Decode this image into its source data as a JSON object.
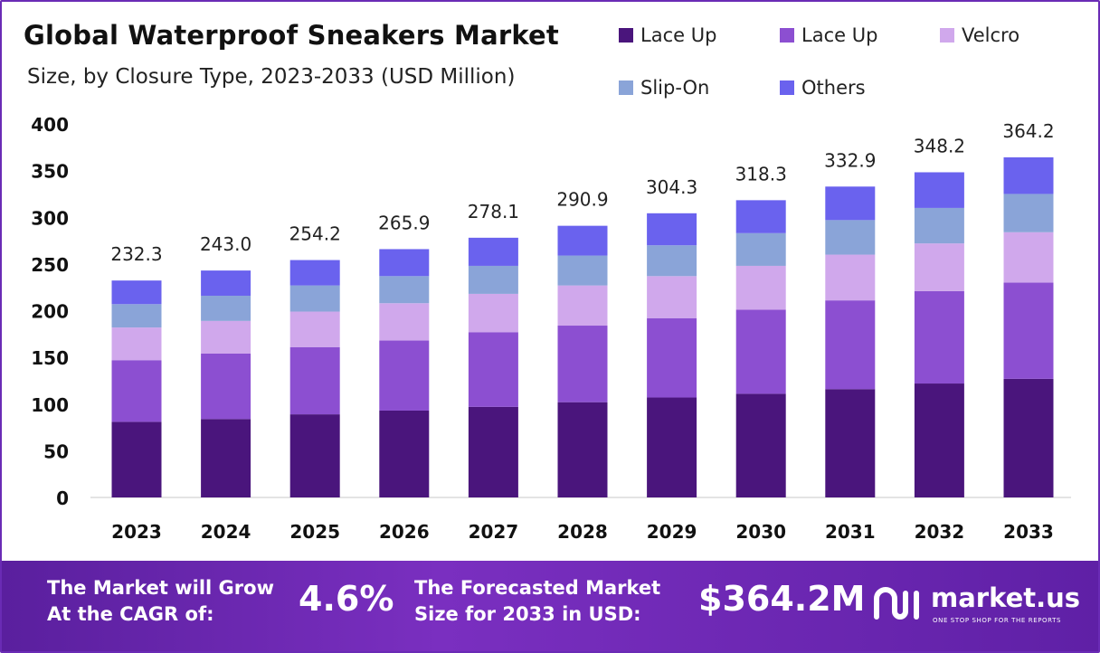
{
  "chart_data": {
    "type": "bar",
    "stacked": true,
    "title": "Global Waterproof Sneakers Market",
    "subtitle": "Size, by Closure Type, 2023-2033 (USD Million)",
    "xlabel": "",
    "ylabel": "",
    "ylim": [
      0,
      400
    ],
    "yticks": [
      0,
      50,
      100,
      150,
      200,
      250,
      300,
      350,
      400
    ],
    "grid": false,
    "legend_position": "top-right",
    "categories": [
      "2023",
      "2024",
      "2025",
      "2026",
      "2027",
      "2028",
      "2029",
      "2030",
      "2031",
      "2032",
      "2033"
    ],
    "totals": [
      "232.3",
      "243.0",
      "254.2",
      "265.9",
      "278.1",
      "290.9",
      "304.3",
      "318.3",
      "332.9",
      "348.2",
      "364.2"
    ],
    "series": [
      {
        "name": "Lace Up",
        "color": "#4a157c",
        "values": [
          81,
          84,
          89,
          93,
          97,
          102,
          107,
          111,
          116,
          122,
          127
        ]
      },
      {
        "name": "Lace Up",
        "color": "#8c4fd1",
        "values": [
          66,
          70,
          72,
          75,
          80,
          82,
          85,
          90,
          95,
          99,
          103
        ]
      },
      {
        "name": "Velcro",
        "color": "#d0a8ec",
        "values": [
          35,
          35,
          38,
          40,
          41,
          43,
          45,
          47,
          49,
          51,
          54
        ]
      },
      {
        "name": "Slip-On",
        "color": "#8aa4d8",
        "values": [
          25,
          27,
          28,
          29,
          30,
          32,
          33,
          35,
          37,
          38,
          41
        ]
      },
      {
        "name": "Others",
        "color": "#6a62ee",
        "values": [
          25.3,
          27.0,
          27.2,
          28.9,
          30.1,
          31.9,
          34.3,
          35.3,
          35.9,
          38.2,
          39.2
        ]
      }
    ]
  },
  "banner": {
    "cagr_label": "The Market will Grow\nAt the CAGR of:",
    "cagr_value": "4.6%",
    "forecast_label": "The Forecasted Market\nSize for 2033 in USD:",
    "forecast_value": "$364.2M",
    "brand_name": "market.us",
    "brand_tagline": "ONE STOP SHOP FOR THE REPORTS"
  }
}
